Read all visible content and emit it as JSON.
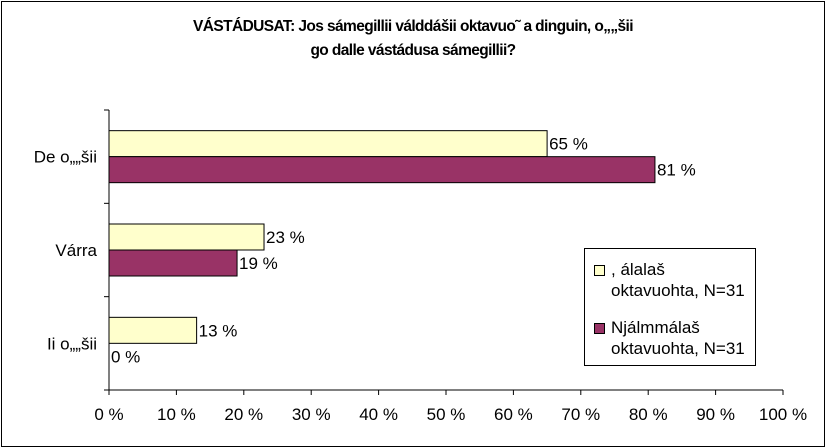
{
  "title": {
    "line1": "VÁSTÁDUSAT: Jos sámegillii válddášii oktavuo˜ a dinguin, o„„šii",
    "line2": "go dalle vástádusa sámegillii?"
  },
  "colors": {
    "series1": "#ffffcc",
    "series2": "#993366",
    "grid": "#000000"
  },
  "chart_data": {
    "type": "bar",
    "orientation": "horizontal",
    "categories": [
      "De o„„šii",
      "Várra",
      "Ii o„„šii"
    ],
    "series": [
      {
        "name": ", álalaš oktavuohta, N=31",
        "values": [
          65,
          23,
          13
        ],
        "labels": [
          "65 %",
          "23 %",
          "13 %"
        ]
      },
      {
        "name": "Njálmmálaš oktavuohta, N=31",
        "values": [
          81,
          19,
          0
        ],
        "labels": [
          "81 %",
          "19 %",
          "0 %"
        ]
      }
    ],
    "xlim": [
      0,
      100
    ],
    "xticks": [
      "0 %",
      "10 %",
      "20 %",
      "30 %",
      "40 %",
      "50 %",
      "60 %",
      "70 %",
      "80 %",
      "90 %",
      "100 %"
    ],
    "grid": false,
    "legend": "right"
  },
  "legend": {
    "item1": ", álalaš oktavuohta, N=31",
    "item2": "Njálmmálaš oktavuohta, N=31"
  }
}
